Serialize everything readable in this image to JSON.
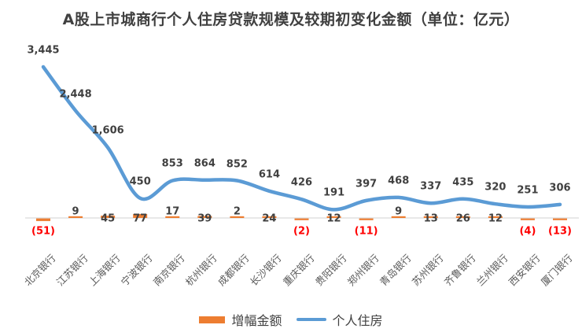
{
  "chart_data": {
    "type": "combo-line-bar",
    "title": "A股上市城商行个人住房贷款规模及较期初变化金额（单位：亿元）",
    "categories": [
      "北京银行",
      "江苏银行",
      "上海银行",
      "宁波银行",
      "南京银行",
      "杭州银行",
      "成都银行",
      "长沙银行",
      "重庆银行",
      "贵阳银行",
      "郑州银行",
      "青岛银行",
      "苏州银行",
      "齐鲁银行",
      "兰州银行",
      "西安银行",
      "厦门银行"
    ],
    "series": [
      {
        "name": "增幅金额",
        "type": "bar",
        "color": "#ED7D31",
        "values": [
          -51,
          9,
          45,
          77,
          17,
          39,
          2,
          24,
          -2,
          12,
          -11,
          9,
          13,
          26,
          12,
          -4,
          -13
        ],
        "label_format_negative": "parentheses",
        "negative_label_color": "#FF0000"
      },
      {
        "name": "个人住房",
        "type": "line",
        "color": "#5B9BD5",
        "values": [
          3445,
          2448,
          1606,
          450,
          853,
          864,
          852,
          614,
          426,
          191,
          397,
          468,
          337,
          435,
          320,
          251,
          306
        ],
        "smooth": true
      }
    ],
    "layout": {
      "legend_position": "bottom-center",
      "gridlines": false,
      "y_axis_visible": false,
      "zero_axis_visible": true,
      "axis_color": "#D9D9D9",
      "label_color": "#404040",
      "category_label_color": "#595959",
      "category_label_rotation_deg": 45,
      "bar_label_tiers": [
        "neg",
        "high",
        "low",
        "low",
        "high",
        "low",
        "high",
        "low",
        "neg",
        "low",
        "neg",
        "high",
        "low",
        "low",
        "low",
        "neg",
        "neg"
      ]
    }
  }
}
